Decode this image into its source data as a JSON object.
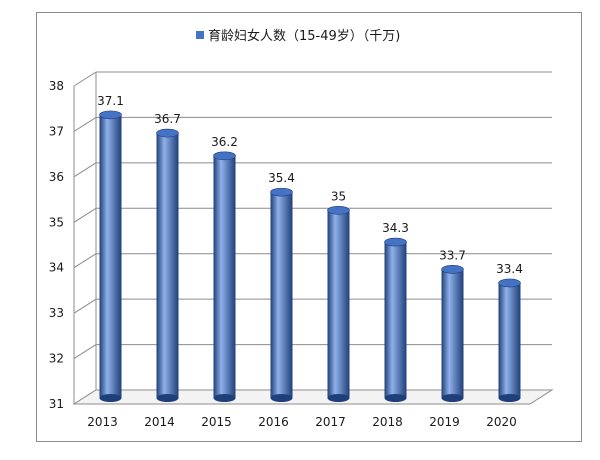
{
  "chart_data": {
    "type": "bar",
    "categories": [
      "2013",
      "2014",
      "2015",
      "2016",
      "2017",
      "2018",
      "2019",
      "2020"
    ],
    "series": [
      {
        "name": "育龄妇女人数（15-49岁）（千万)",
        "values": [
          37.1,
          36.7,
          36.2,
          35.4,
          35,
          34.3,
          33.7,
          33.4
        ]
      }
    ],
    "data_labels": [
      "37.1",
      "36.7",
      "36.2",
      "35.4",
      "35",
      "34.3",
      "33.7",
      "33.4"
    ],
    "ylim": [
      31,
      38
    ],
    "yticks": [
      "31",
      "32",
      "33",
      "34",
      "35",
      "36",
      "37",
      "38"
    ],
    "grid": true,
    "legend_position": "top",
    "style": "3d-cylinder",
    "colors": {
      "bar": "#4472C4",
      "bar_dark": "#1F3F7A",
      "bar_light": "#8FB0E8",
      "grid": "#8c8c8c"
    }
  }
}
